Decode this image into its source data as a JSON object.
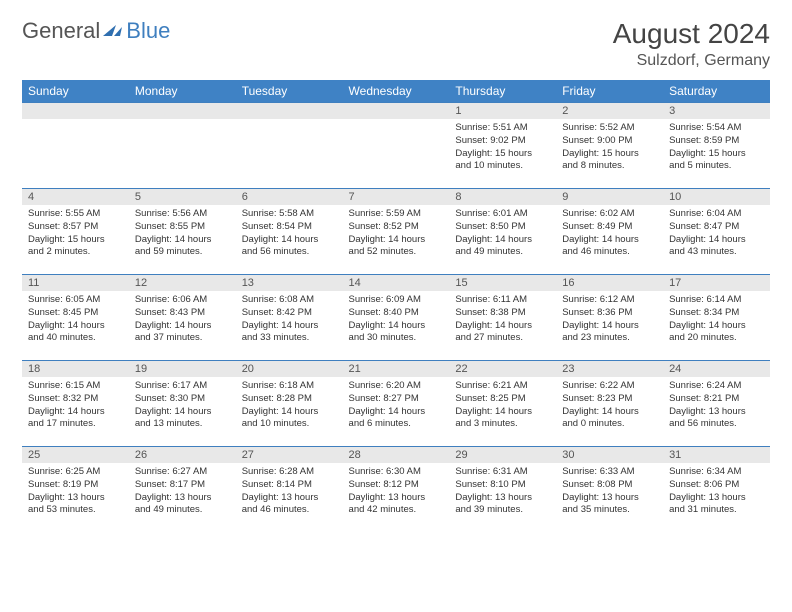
{
  "brand": {
    "text1": "General",
    "text2": "Blue",
    "logo_color": "#2f6fb0"
  },
  "title": "August 2024",
  "location": "Sulzdorf, Germany",
  "colors": {
    "header_bg": "#3f82c5",
    "header_text": "#ffffff",
    "daynum_bg": "#e8e8e8",
    "border": "#3f7fbf",
    "body_text": "#333333"
  },
  "day_headers": [
    "Sunday",
    "Monday",
    "Tuesday",
    "Wednesday",
    "Thursday",
    "Friday",
    "Saturday"
  ],
  "weeks": [
    [
      null,
      null,
      null,
      null,
      {
        "n": "1",
        "sr": "Sunrise: 5:51 AM",
        "ss": "Sunset: 9:02 PM",
        "dl": "Daylight: 15 hours and 10 minutes."
      },
      {
        "n": "2",
        "sr": "Sunrise: 5:52 AM",
        "ss": "Sunset: 9:00 PM",
        "dl": "Daylight: 15 hours and 8 minutes."
      },
      {
        "n": "3",
        "sr": "Sunrise: 5:54 AM",
        "ss": "Sunset: 8:59 PM",
        "dl": "Daylight: 15 hours and 5 minutes."
      }
    ],
    [
      {
        "n": "4",
        "sr": "Sunrise: 5:55 AM",
        "ss": "Sunset: 8:57 PM",
        "dl": "Daylight: 15 hours and 2 minutes."
      },
      {
        "n": "5",
        "sr": "Sunrise: 5:56 AM",
        "ss": "Sunset: 8:55 PM",
        "dl": "Daylight: 14 hours and 59 minutes."
      },
      {
        "n": "6",
        "sr": "Sunrise: 5:58 AM",
        "ss": "Sunset: 8:54 PM",
        "dl": "Daylight: 14 hours and 56 minutes."
      },
      {
        "n": "7",
        "sr": "Sunrise: 5:59 AM",
        "ss": "Sunset: 8:52 PM",
        "dl": "Daylight: 14 hours and 52 minutes."
      },
      {
        "n": "8",
        "sr": "Sunrise: 6:01 AM",
        "ss": "Sunset: 8:50 PM",
        "dl": "Daylight: 14 hours and 49 minutes."
      },
      {
        "n": "9",
        "sr": "Sunrise: 6:02 AM",
        "ss": "Sunset: 8:49 PM",
        "dl": "Daylight: 14 hours and 46 minutes."
      },
      {
        "n": "10",
        "sr": "Sunrise: 6:04 AM",
        "ss": "Sunset: 8:47 PM",
        "dl": "Daylight: 14 hours and 43 minutes."
      }
    ],
    [
      {
        "n": "11",
        "sr": "Sunrise: 6:05 AM",
        "ss": "Sunset: 8:45 PM",
        "dl": "Daylight: 14 hours and 40 minutes."
      },
      {
        "n": "12",
        "sr": "Sunrise: 6:06 AM",
        "ss": "Sunset: 8:43 PM",
        "dl": "Daylight: 14 hours and 37 minutes."
      },
      {
        "n": "13",
        "sr": "Sunrise: 6:08 AM",
        "ss": "Sunset: 8:42 PM",
        "dl": "Daylight: 14 hours and 33 minutes."
      },
      {
        "n": "14",
        "sr": "Sunrise: 6:09 AM",
        "ss": "Sunset: 8:40 PM",
        "dl": "Daylight: 14 hours and 30 minutes."
      },
      {
        "n": "15",
        "sr": "Sunrise: 6:11 AM",
        "ss": "Sunset: 8:38 PM",
        "dl": "Daylight: 14 hours and 27 minutes."
      },
      {
        "n": "16",
        "sr": "Sunrise: 6:12 AM",
        "ss": "Sunset: 8:36 PM",
        "dl": "Daylight: 14 hours and 23 minutes."
      },
      {
        "n": "17",
        "sr": "Sunrise: 6:14 AM",
        "ss": "Sunset: 8:34 PM",
        "dl": "Daylight: 14 hours and 20 minutes."
      }
    ],
    [
      {
        "n": "18",
        "sr": "Sunrise: 6:15 AM",
        "ss": "Sunset: 8:32 PM",
        "dl": "Daylight: 14 hours and 17 minutes."
      },
      {
        "n": "19",
        "sr": "Sunrise: 6:17 AM",
        "ss": "Sunset: 8:30 PM",
        "dl": "Daylight: 14 hours and 13 minutes."
      },
      {
        "n": "20",
        "sr": "Sunrise: 6:18 AM",
        "ss": "Sunset: 8:28 PM",
        "dl": "Daylight: 14 hours and 10 minutes."
      },
      {
        "n": "21",
        "sr": "Sunrise: 6:20 AM",
        "ss": "Sunset: 8:27 PM",
        "dl": "Daylight: 14 hours and 6 minutes."
      },
      {
        "n": "22",
        "sr": "Sunrise: 6:21 AM",
        "ss": "Sunset: 8:25 PM",
        "dl": "Daylight: 14 hours and 3 minutes."
      },
      {
        "n": "23",
        "sr": "Sunrise: 6:22 AM",
        "ss": "Sunset: 8:23 PM",
        "dl": "Daylight: 14 hours and 0 minutes."
      },
      {
        "n": "24",
        "sr": "Sunrise: 6:24 AM",
        "ss": "Sunset: 8:21 PM",
        "dl": "Daylight: 13 hours and 56 minutes."
      }
    ],
    [
      {
        "n": "25",
        "sr": "Sunrise: 6:25 AM",
        "ss": "Sunset: 8:19 PM",
        "dl": "Daylight: 13 hours and 53 minutes."
      },
      {
        "n": "26",
        "sr": "Sunrise: 6:27 AM",
        "ss": "Sunset: 8:17 PM",
        "dl": "Daylight: 13 hours and 49 minutes."
      },
      {
        "n": "27",
        "sr": "Sunrise: 6:28 AM",
        "ss": "Sunset: 8:14 PM",
        "dl": "Daylight: 13 hours and 46 minutes."
      },
      {
        "n": "28",
        "sr": "Sunrise: 6:30 AM",
        "ss": "Sunset: 8:12 PM",
        "dl": "Daylight: 13 hours and 42 minutes."
      },
      {
        "n": "29",
        "sr": "Sunrise: 6:31 AM",
        "ss": "Sunset: 8:10 PM",
        "dl": "Daylight: 13 hours and 39 minutes."
      },
      {
        "n": "30",
        "sr": "Sunrise: 6:33 AM",
        "ss": "Sunset: 8:08 PM",
        "dl": "Daylight: 13 hours and 35 minutes."
      },
      {
        "n": "31",
        "sr": "Sunrise: 6:34 AM",
        "ss": "Sunset: 8:06 PM",
        "dl": "Daylight: 13 hours and 31 minutes."
      }
    ]
  ]
}
